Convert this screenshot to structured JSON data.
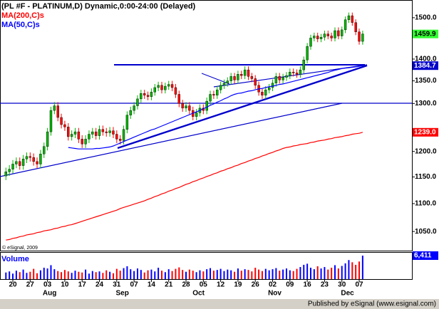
{
  "chart_data": {
    "type": "candlestick",
    "title": "(PL #F - PLATINUM,D) Dynamic,0:00-24:00 (Delayed)",
    "categories": [
      null,
      null,
      "20",
      null,
      null,
      null,
      null,
      "27",
      null,
      null,
      null,
      null,
      "03",
      null,
      null,
      null,
      null,
      "10",
      null,
      null,
      null,
      null,
      "17",
      null,
      null,
      null,
      null,
      "24",
      null,
      null,
      null,
      null,
      "31",
      null,
      null,
      null,
      null,
      "07",
      null,
      null,
      null,
      null,
      "14",
      null,
      null,
      null,
      null,
      "21",
      null,
      null,
      null,
      null,
      "28",
      null,
      null,
      null,
      null,
      "05",
      null,
      null,
      null,
      null,
      "12",
      null,
      null,
      null,
      null,
      "19",
      null,
      null,
      null,
      null,
      "26",
      null,
      null,
      null,
      null,
      "02",
      null,
      null,
      null,
      null,
      "09",
      null,
      null,
      null,
      null,
      "16",
      null,
      null,
      null,
      null,
      "23",
      null,
      null,
      null,
      null,
      "30",
      null,
      null,
      null,
      null,
      "07",
      null
    ],
    "months": [
      null,
      null,
      null,
      null,
      null,
      null,
      null,
      null,
      null,
      null,
      null,
      null,
      "Aug",
      null,
      null,
      null,
      null,
      null,
      null,
      null,
      null,
      null,
      null,
      null,
      null,
      null,
      null,
      null,
      null,
      null,
      null,
      null,
      null,
      "Sep",
      null,
      null,
      null,
      null,
      null,
      null,
      null,
      null,
      null,
      null,
      null,
      null,
      null,
      null,
      null,
      null,
      null,
      null,
      null,
      null,
      null,
      "Oct",
      null,
      null,
      null,
      null,
      null,
      null,
      null,
      null,
      null,
      null,
      null,
      null,
      null,
      null,
      null,
      null,
      null,
      null,
      null,
      null,
      null,
      "Nov",
      null,
      null,
      null,
      null,
      null,
      null,
      null,
      null,
      null,
      null,
      null,
      null,
      null,
      null,
      null,
      null,
      null,
      null,
      null,
      null,
      "Dec",
      null,
      null,
      null,
      null,
      null
    ],
    "open": [
      1152,
      1160,
      1165,
      1175,
      1180,
      1172,
      1185,
      1190,
      1188,
      1180,
      1175,
      1195,
      1210,
      1240,
      1285,
      1295,
      1270,
      1255,
      1250,
      1230,
      1235,
      1240,
      1225,
      1215,
      1225,
      1235,
      1240,
      1232,
      1245,
      1240,
      1238,
      1242,
      1235,
      1225,
      1222,
      1245,
      1275,
      1285,
      1295,
      1310,
      1322,
      1318,
      1315,
      1325,
      1335,
      1340,
      1330,
      1338,
      1342,
      1335,
      1320,
      1300,
      1290,
      1295,
      1285,
      1272,
      1280,
      1290,
      1285,
      1305,
      1320,
      1318,
      1330,
      1340,
      1345,
      1350,
      1360,
      1352,
      1365,
      1362,
      1375,
      1360,
      1355,
      1340,
      1325,
      1318,
      1330,
      1335,
      1345,
      1360,
      1352,
      1358,
      1362,
      1370,
      1368,
      1365,
      1375,
      1398,
      1430,
      1450,
      1455,
      1448,
      1452,
      1460,
      1455,
      1450,
      1468,
      1455,
      1470,
      1495,
      1505,
      1488,
      1465,
      1442
    ],
    "high": [
      1168,
      1173,
      1183,
      1188,
      1188,
      1193,
      1198,
      1198,
      1196,
      1188,
      1203,
      1218,
      1248,
      1293,
      1303,
      1303,
      1278,
      1263,
      1258,
      1243,
      1248,
      1248,
      1233,
      1233,
      1243,
      1248,
      1248,
      1253,
      1253,
      1248,
      1250,
      1250,
      1243,
      1233,
      1253,
      1283,
      1293,
      1303,
      1318,
      1330,
      1330,
      1326,
      1333,
      1343,
      1348,
      1348,
      1346,
      1350,
      1350,
      1343,
      1328,
      1308,
      1303,
      1303,
      1293,
      1288,
      1298,
      1298,
      1313,
      1328,
      1328,
      1338,
      1348,
      1353,
      1358,
      1368,
      1368,
      1373,
      1373,
      1383,
      1383,
      1368,
      1363,
      1348,
      1333,
      1338,
      1343,
      1353,
      1368,
      1368,
      1366,
      1370,
      1378,
      1378,
      1376,
      1383,
      1406,
      1438,
      1458,
      1463,
      1463,
      1460,
      1468,
      1468,
      1463,
      1476,
      1476,
      1478,
      1503,
      1513,
      1513,
      1496,
      1473,
      1468
    ],
    "low": [
      1144,
      1152,
      1157,
      1167,
      1164,
      1164,
      1177,
      1180,
      1172,
      1167,
      1167,
      1187,
      1202,
      1232,
      1277,
      1262,
      1247,
      1242,
      1222,
      1222,
      1227,
      1217,
      1207,
      1207,
      1217,
      1227,
      1224,
      1224,
      1232,
      1230,
      1230,
      1227,
      1217,
      1214,
      1214,
      1237,
      1267,
      1277,
      1287,
      1302,
      1310,
      1307,
      1307,
      1317,
      1327,
      1322,
      1322,
      1330,
      1327,
      1312,
      1292,
      1282,
      1282,
      1277,
      1264,
      1264,
      1272,
      1277,
      1277,
      1297,
      1310,
      1310,
      1322,
      1332,
      1337,
      1342,
      1344,
      1344,
      1354,
      1354,
      1352,
      1347,
      1332,
      1317,
      1310,
      1310,
      1322,
      1327,
      1337,
      1344,
      1344,
      1350,
      1354,
      1360,
      1357,
      1357,
      1367,
      1390,
      1422,
      1442,
      1440,
      1440,
      1444,
      1447,
      1442,
      1442,
      1447,
      1447,
      1462,
      1487,
      1480,
      1457,
      1434,
      1434
    ],
    "close": [
      1160,
      1165,
      1175,
      1180,
      1172,
      1185,
      1190,
      1188,
      1180,
      1175,
      1195,
      1210,
      1240,
      1285,
      1295,
      1270,
      1255,
      1250,
      1230,
      1235,
      1240,
      1225,
      1215,
      1225,
      1235,
      1240,
      1232,
      1245,
      1240,
      1238,
      1242,
      1235,
      1225,
      1222,
      1245,
      1275,
      1285,
      1295,
      1310,
      1322,
      1318,
      1315,
      1325,
      1335,
      1340,
      1330,
      1338,
      1342,
      1335,
      1320,
      1300,
      1290,
      1295,
      1285,
      1272,
      1280,
      1290,
      1285,
      1305,
      1320,
      1318,
      1330,
      1340,
      1345,
      1350,
      1360,
      1352,
      1365,
      1362,
      1375,
      1360,
      1355,
      1340,
      1325,
      1318,
      1330,
      1335,
      1345,
      1360,
      1352,
      1358,
      1362,
      1370,
      1368,
      1365,
      1375,
      1398,
      1430,
      1450,
      1455,
      1448,
      1452,
      1460,
      1455,
      1450,
      1468,
      1455,
      1470,
      1495,
      1505,
      1488,
      1465,
      1442,
      1459.9
    ],
    "up_color": "#00b400",
    "down_color": "#ff0000",
    "last_price_color": "#33ff33",
    "ylim": [
      1017,
      1545
    ],
    "log": true,
    "yticks": [
      {
        "value": 1500,
        "label": "1500.0"
      },
      {
        "value": 1400,
        "label": "1400.0"
      },
      {
        "value": 1350,
        "label": "1350.0"
      },
      {
        "value": 1300,
        "label": "1300.0"
      },
      {
        "value": 1200,
        "label": "1200.0"
      },
      {
        "value": 1150,
        "label": "1150.0"
      },
      {
        "value": 1100,
        "label": "1100.0"
      },
      {
        "value": 1050,
        "label": "1050.0"
      }
    ],
    "series": [
      {
        "name": "MA(200,C)s",
        "color": "#ff0000",
        "last_label": "1239.0",
        "values": [
          1035,
          1036,
          1038,
          1039,
          1041,
          1042,
          1044,
          1045,
          1046,
          1048,
          1049,
          1051,
          1052,
          1053,
          1055,
          1056,
          1058,
          1059,
          1061,
          1062,
          1064,
          1066,
          1068,
          1070,
          1072,
          1074,
          1076,
          1078,
          1080,
          1082,
          1084,
          1086,
          1088,
          1091,
          1093,
          1095,
          1097,
          1099,
          1101,
          1103,
          1105,
          1108,
          1110,
          1113,
          1115,
          1118,
          1120,
          1123,
          1125,
          1128,
          1130,
          1133,
          1136,
          1138,
          1141,
          1143,
          1146,
          1148,
          1151,
          1153,
          1156,
          1158,
          1161,
          1163,
          1166,
          1168,
          1171,
          1173,
          1176,
          1178,
          1181,
          1183,
          1186,
          1188,
          1191,
          1193,
          1196,
          1198,
          1201,
          1203,
          1206,
          1208,
          1209,
          1211,
          1212,
          1214,
          1215,
          1216,
          1218,
          1219,
          1221,
          1222,
          1223,
          1225,
          1226,
          1228,
          1229,
          1230,
          1232,
          1233,
          1235,
          1236,
          1237,
          1239
        ]
      },
      {
        "name": "MA(50,C)s",
        "color": "#0000ff",
        "values": [
          null,
          null,
          null,
          null,
          null,
          null,
          null,
          null,
          null,
          null,
          null,
          null,
          null,
          null,
          null,
          null,
          null,
          null,
          1208,
          1207,
          1206,
          1205,
          1205,
          1205,
          1205,
          1205,
          1206,
          1206,
          1207,
          1208,
          1209,
          1211,
          1214,
          1217,
          1220,
          1223,
          1226,
          1229,
          1232,
          1235,
          1238,
          1241,
          1244,
          1246,
          1249,
          1252,
          1255,
          1258,
          1261,
          1264,
          1267,
          1270,
          1273,
          1276,
          1279,
          1282,
          1285,
          1289,
          1292,
          1296,
          1299,
          1303,
          1306,
          1310,
          1313,
          1317,
          1320,
          1322,
          1323,
          1325,
          1327,
          1328,
          1330,
          1332,
          1333,
          1335,
          1337,
          1338,
          1340,
          1342,
          1343,
          1345,
          1347,
          1349,
          1351,
          1353,
          1355,
          1357,
          1359,
          1361,
          1363,
          1365,
          1367,
          1369,
          1372,
          1374,
          1376,
          1378,
          1379,
          1380,
          1381,
          1382,
          1383,
          1384.7
        ]
      }
    ],
    "volume": {
      "name": "Volume",
      "color": "#0000ff",
      "down_color": "#ff0000",
      "ylim": [
        0,
        7000
      ],
      "last_label": "6,411",
      "values": [
        1800,
        2100,
        1500,
        2300,
        1900,
        2600,
        1700,
        2000,
        2800,
        1600,
        2400,
        3100,
        2900,
        3800,
        2700,
        2200,
        1900,
        2500,
        2100,
        1700,
        2300,
        2000,
        1800,
        2600,
        1500,
        2200,
        1900,
        2100,
        1700,
        2400,
        2000,
        1600,
        2800,
        2300,
        3000,
        3500,
        2700,
        2200,
        2900,
        2500,
        1800,
        2400,
        2600,
        2100,
        3100,
        2300,
        1900,
        2700,
        2200,
        2800,
        3200,
        2500,
        2000,
        2600,
        2300,
        1900,
        2400,
        2100,
        2700,
        3000,
        2300,
        2500,
        2800,
        2200,
        2600,
        2400,
        2000,
        2900,
        2300,
        2700,
        2500,
        2100,
        3100,
        2600,
        2200,
        2800,
        2400,
        2700,
        3000,
        2300,
        2600,
        2900,
        2400,
        2200,
        2800,
        3300,
        3900,
        4200,
        3100,
        2700,
        3500,
        2900,
        3300,
        2600,
        3100,
        3800,
        2900,
        3600,
        4300,
        5200,
        4600,
        3900,
        4800,
        6411
      ]
    },
    "copyright": "© eSignal, 2009",
    "footer": "Published by eSignal (www.esignal.com)"
  }
}
